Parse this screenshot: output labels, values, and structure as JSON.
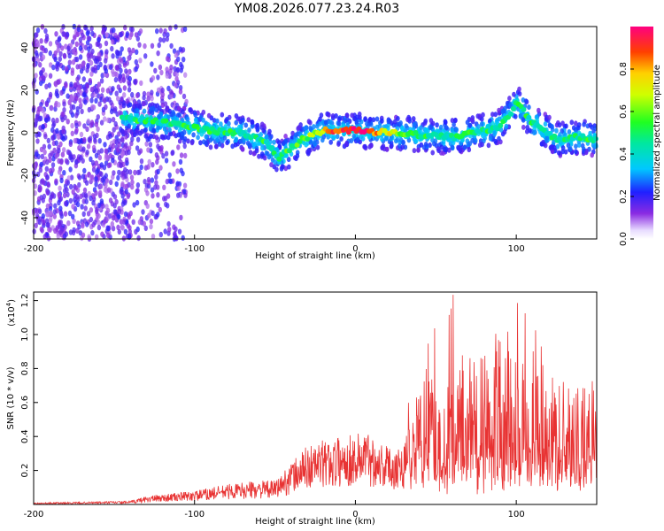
{
  "title": "YM08.2026.077.23.24.R03",
  "chart_data": [
    {
      "type": "heatmap",
      "xlabel": "Height of straight line (km)",
      "ylabel": "Frequency (Hz)",
      "xlim": [
        -200,
        150
      ],
      "ylim": [
        -50,
        50
      ],
      "xticks": [
        "-200",
        "-100",
        "0",
        "100"
      ],
      "yticks": [
        "40",
        "20",
        "0",
        "-20",
        "-40"
      ],
      "colorbar": {
        "label": "Normalized spectral amplitude",
        "range": [
          0,
          1
        ],
        "ticks": [
          "0.0",
          "0.2",
          "0.4",
          "0.6",
          "0.8"
        ]
      },
      "ridge": {
        "description_values_x": [
          -145,
          -130,
          -110,
          -90,
          -70,
          -55,
          -47,
          -35,
          -20,
          0,
          20,
          40,
          60,
          75,
          90,
          97,
          100,
          110,
          125,
          140,
          150
        ],
        "description_values_y": [
          7,
          6,
          4,
          1,
          0,
          -5,
          -12,
          -4,
          1,
          1,
          0,
          -1,
          -2,
          0,
          3,
          10,
          15,
          5,
          -3,
          -2,
          -3
        ]
      }
    },
    {
      "type": "line",
      "xlabel": "Height of straight line (km)",
      "ylabel": "SNR (10 * v/v)",
      "scale_label": "(x10",
      "scale_exp": "4",
      "scale_close": ")",
      "xlim": [
        -200,
        150
      ],
      "ylim": [
        0,
        1.25
      ],
      "xticks": [
        "-200",
        "-100",
        "0",
        "100"
      ],
      "yticks": [
        "0.2",
        "0.4",
        "0.6",
        "0.8",
        "1.0",
        "1.2"
      ],
      "series": [
        {
          "name": "SNR",
          "color": "#e83333",
          "envelope_x": [
            -200,
            -140,
            -130,
            -100,
            -80,
            -60,
            -50,
            -35,
            -30,
            -20,
            -10,
            0,
            5,
            20,
            30,
            33,
            40,
            60,
            70,
            100,
            120,
            140,
            150
          ],
          "envelope_y": [
            0.01,
            0.02,
            0.05,
            0.08,
            0.12,
            0.14,
            0.14,
            0.3,
            0.35,
            0.38,
            0.4,
            0.42,
            0.45,
            0.35,
            0.35,
            0.7,
            0.9,
            1.25,
            1.0,
            1.2,
            0.9,
            0.7,
            0.9
          ]
        }
      ]
    }
  ]
}
